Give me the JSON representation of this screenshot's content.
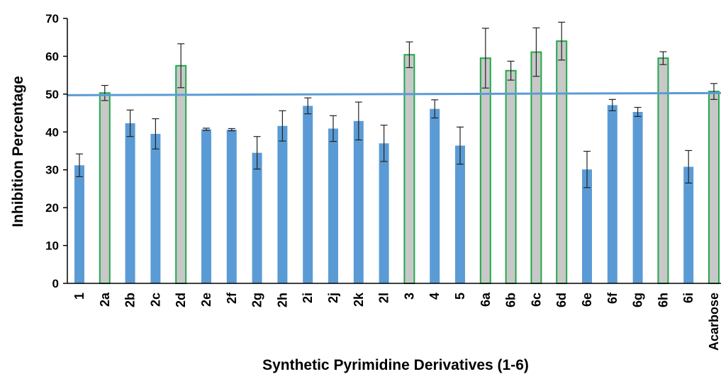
{
  "chart_data": {
    "type": "bar",
    "xlabel": "Synthetic Pyrimidine Derivatives (1-6)",
    "ylabel": "Inhibition Percentage",
    "ylim": [
      0,
      70
    ],
    "yticks": [
      0,
      10,
      20,
      30,
      40,
      50,
      60,
      70
    ],
    "grid": false,
    "legend": "none",
    "categories": [
      "1",
      "2a",
      "2b",
      "2c",
      "2d",
      "2e",
      "2f",
      "2g",
      "2h",
      "2i",
      "2j",
      "2k",
      "2l",
      "3",
      "4",
      "5",
      "6a",
      "6b",
      "6c",
      "6d",
      "6e",
      "6f",
      "6g",
      "6h",
      "6i",
      "Acarbose"
    ],
    "values": [
      31.2,
      50.3,
      42.3,
      39.5,
      57.5,
      40.7,
      40.6,
      34.5,
      41.6,
      46.9,
      40.9,
      42.9,
      37.0,
      60.4,
      46.1,
      36.4,
      59.5,
      56.2,
      61.1,
      64.0,
      30.1,
      47.1,
      45.3,
      59.5,
      30.8,
      50.7
    ],
    "errors": [
      3.0,
      2.0,
      3.5,
      4.0,
      5.8,
      0.3,
      0.3,
      4.3,
      4.0,
      2.1,
      3.4,
      5.0,
      4.8,
      3.4,
      2.4,
      4.9,
      7.9,
      2.5,
      6.4,
      5.0,
      4.8,
      1.5,
      1.2,
      1.7,
      4.3,
      2.1
    ],
    "highlighted": [
      "2a",
      "2d",
      "3",
      "6a",
      "6b",
      "6c",
      "6d",
      "6h",
      "Acarbose"
    ],
    "reference_line": 50,
    "colors": {
      "bar": "#5b9bd5",
      "highlight_fill": "#c8c8c8",
      "highlight_border": "#22a84b",
      "reference_line": "#5b9bd5",
      "error_bar": "#222222",
      "axis": "#000000"
    }
  }
}
